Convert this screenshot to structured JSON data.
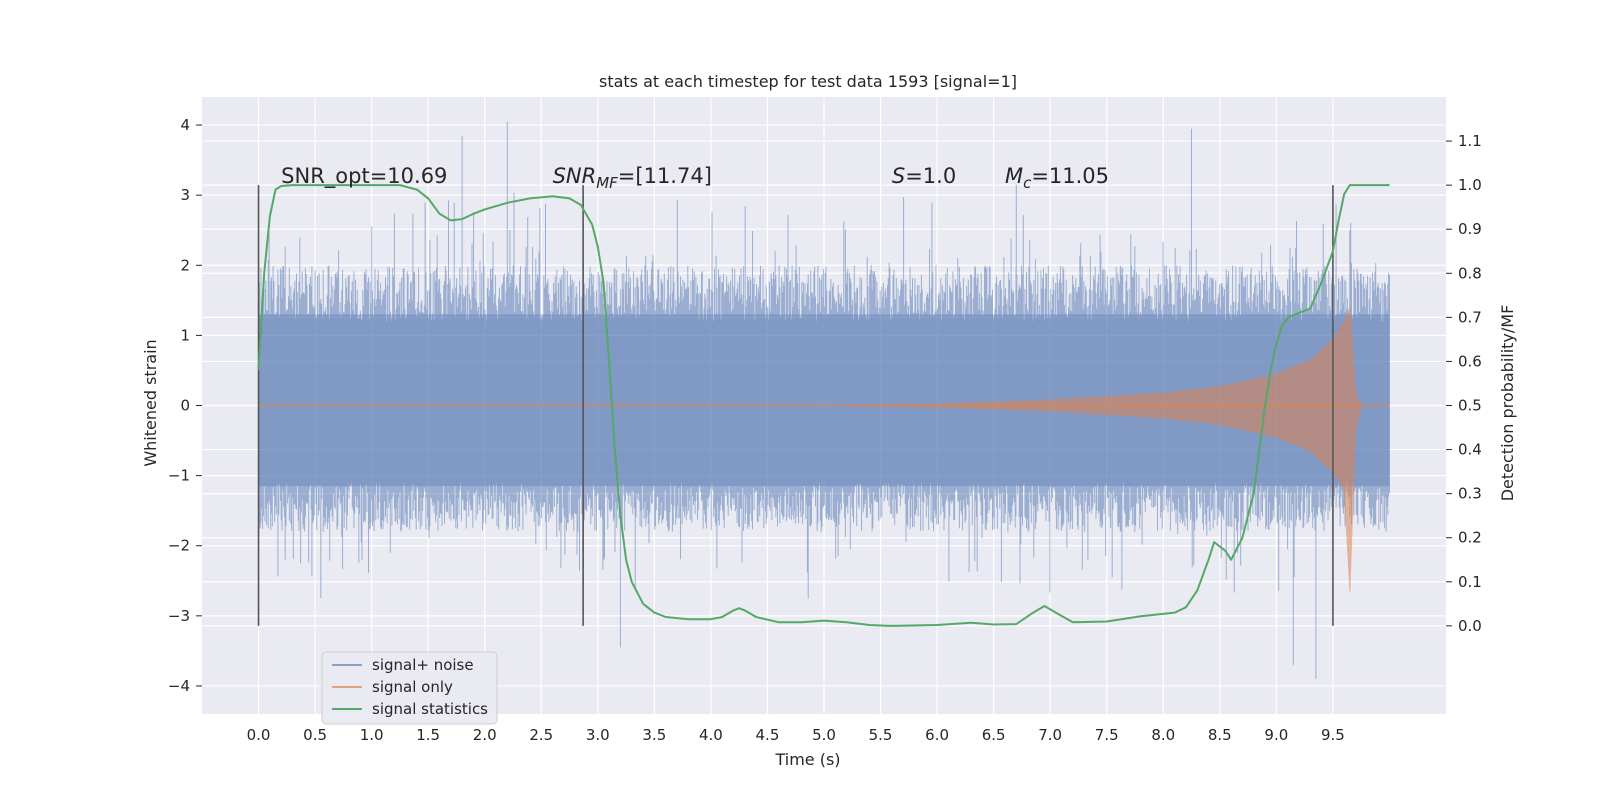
{
  "chart_data": {
    "type": "line",
    "title": "stats at each timestep for test data 1593 [signal=1]",
    "xlabel": "Time (s)",
    "ylabel_left": "Whitened strain",
    "ylabel_right": "Detection probability/MF",
    "xlim": [
      -0.5,
      10.5
    ],
    "ylim_left": [
      -4.4,
      4.4
    ],
    "ylim_right": [
      -0.2,
      1.2
    ],
    "x_ticks": [
      "0.0",
      "0.5",
      "1.0",
      "1.5",
      "2.0",
      "2.5",
      "3.0",
      "3.5",
      "4.0",
      "4.5",
      "5.0",
      "5.5",
      "6.0",
      "6.5",
      "7.0",
      "7.5",
      "8.0",
      "8.5",
      "9.0",
      "9.5"
    ],
    "y_ticks_left": [
      "4",
      "3",
      "2",
      "1",
      "0",
      "−1",
      "−2",
      "−3",
      "−4"
    ],
    "y_ticks_right": [
      "1.1",
      "1.0",
      "0.9",
      "0.8",
      "0.7",
      "0.6",
      "0.5",
      "0.4",
      "0.3",
      "0.2",
      "0.1",
      "0.0"
    ],
    "grid": true,
    "legend_position": "lower-left",
    "colors": {
      "noise": "#4c72b0",
      "signal": "#dd8452",
      "stats": "#55a868",
      "background": "#eaeaf2",
      "grid": "#ffffff",
      "vline": "#555555"
    },
    "series": [
      {
        "name": "signal+ noise",
        "x_range": [
          0.0,
          10.0
        ],
        "envelope_typical": [
          -1.8,
          2.0
        ],
        "extremes": [
          [
            1.8,
            3.85
          ],
          [
            2.2,
            4.05
          ],
          [
            3.2,
            -3.45
          ],
          [
            6.7,
            3.15
          ],
          [
            8.25,
            3.95
          ],
          [
            9.15,
            -3.7
          ],
          [
            9.35,
            -3.9
          ]
        ]
      },
      {
        "name": "signal only",
        "description_points": [
          [
            0.0,
            0.0
          ],
          [
            5.0,
            0.0
          ],
          [
            6.0,
            0.02
          ],
          [
            7.0,
            0.08
          ],
          [
            8.0,
            0.18
          ],
          [
            8.5,
            0.27
          ],
          [
            9.0,
            0.45
          ],
          [
            9.3,
            0.65
          ],
          [
            9.5,
            0.95
          ],
          [
            9.6,
            1.2
          ],
          [
            9.65,
            1.4
          ],
          [
            9.7,
            0.2
          ],
          [
            9.75,
            0.0
          ],
          [
            10.0,
            0.0
          ]
        ]
      },
      {
        "name": "signal statistics",
        "axis": "right",
        "x": [
          0.0,
          0.05,
          0.1,
          0.15,
          0.2,
          0.3,
          0.5,
          0.75,
          1.0,
          1.25,
          1.4,
          1.5,
          1.6,
          1.7,
          1.8,
          1.9,
          2.0,
          2.2,
          2.4,
          2.6,
          2.75,
          2.85,
          2.95,
          3.0,
          3.05,
          3.1,
          3.15,
          3.2,
          3.25,
          3.3,
          3.4,
          3.5,
          3.6,
          3.8,
          4.0,
          4.1,
          4.2,
          4.25,
          4.3,
          4.4,
          4.6,
          4.8,
          5.0,
          5.2,
          5.4,
          5.6,
          6.0,
          6.3,
          6.5,
          6.7,
          6.85,
          6.95,
          7.05,
          7.2,
          7.5,
          7.8,
          8.1,
          8.2,
          8.3,
          8.4,
          8.45,
          8.5,
          8.55,
          8.6,
          8.7,
          8.8,
          8.85,
          8.9,
          8.95,
          9.0,
          9.05,
          9.1,
          9.2,
          9.3,
          9.4,
          9.5,
          9.55,
          9.6,
          9.65,
          9.7,
          9.8,
          10.0
        ],
        "y": [
          0.58,
          0.8,
          0.93,
          0.99,
          0.998,
          1.0,
          1.0,
          1.0,
          1.0,
          1.0,
          0.99,
          0.97,
          0.935,
          0.92,
          0.923,
          0.935,
          0.945,
          0.96,
          0.97,
          0.975,
          0.97,
          0.955,
          0.91,
          0.86,
          0.78,
          0.6,
          0.4,
          0.25,
          0.15,
          0.1,
          0.05,
          0.03,
          0.02,
          0.015,
          0.015,
          0.02,
          0.035,
          0.04,
          0.035,
          0.02,
          0.008,
          0.008,
          0.012,
          0.008,
          0.002,
          0.0,
          0.002,
          0.007,
          0.003,
          0.004,
          0.03,
          0.045,
          0.03,
          0.008,
          0.01,
          0.022,
          0.03,
          0.042,
          0.08,
          0.15,
          0.19,
          0.18,
          0.17,
          0.15,
          0.2,
          0.3,
          0.4,
          0.5,
          0.58,
          0.64,
          0.68,
          0.7,
          0.71,
          0.72,
          0.78,
          0.85,
          0.92,
          0.98,
          1.0,
          1.0,
          1.0,
          1.0
        ]
      }
    ],
    "vertical_lines_x": [
      0.0,
      2.87,
      9.5
    ],
    "annotations": [
      {
        "kind": "plain",
        "text": "SNR_opt=10.69",
        "x": 0.2,
        "y_right": 1.0
      },
      {
        "kind": "snrmf",
        "base": "SNR",
        "sub": "MF",
        "rest": "=[11.74]",
        "x": 2.6,
        "y_right": 1.0
      },
      {
        "kind": "s",
        "base": "S",
        "rest": "=1.0",
        "x": 5.6,
        "y_right": 1.0
      },
      {
        "kind": "mc",
        "base": "M",
        "sub": "c",
        "rest": "=11.05",
        "x": 6.6,
        "y_right": 1.0
      }
    ]
  }
}
